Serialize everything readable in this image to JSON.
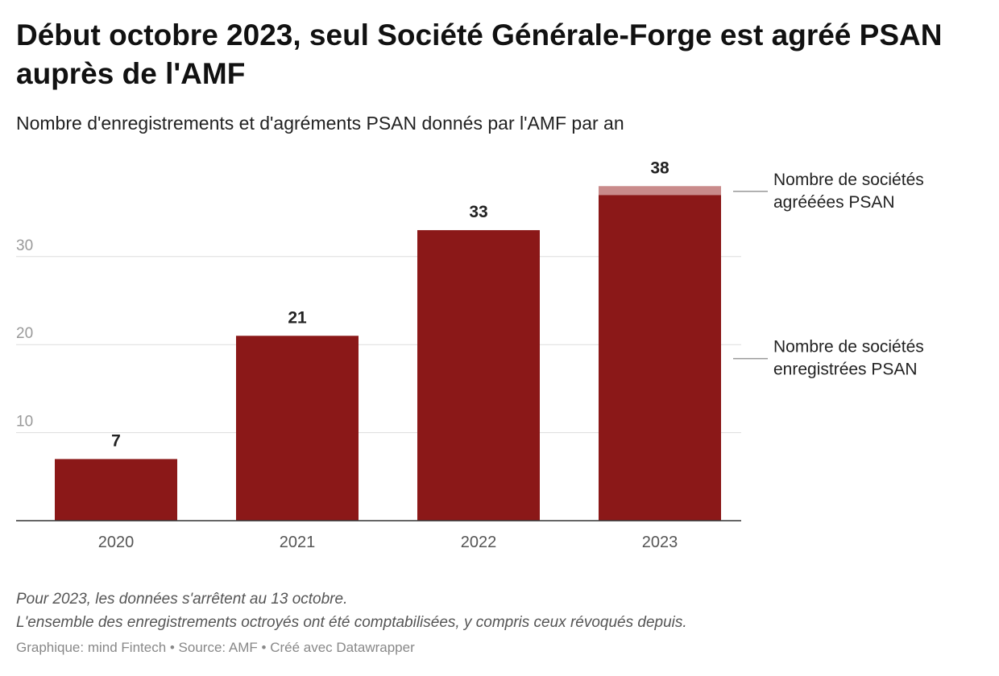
{
  "header": {
    "title": "Début octobre 2023, seul Société Générale-Forge est agréé PSAN auprès de l'AMF",
    "subtitle": "Nombre d'enregistrements et d'agréments PSAN donnés par l'AMF par an"
  },
  "chart_data": {
    "type": "bar",
    "stacked": true,
    "categories": [
      "2020",
      "2021",
      "2022",
      "2023"
    ],
    "series": [
      {
        "name": "Nombre de sociétés enregistrées PSAN",
        "values": [
          7,
          21,
          33,
          37
        ],
        "color": "#8b1818"
      },
      {
        "name": "Nombre de sociétés agréées PSAN",
        "values": [
          0,
          0,
          0,
          1
        ],
        "color": "#c98b8b"
      }
    ],
    "totals": [
      "7",
      "21",
      "33",
      "38"
    ],
    "y_ticks": [
      "10",
      "20",
      "30"
    ],
    "ylim": [
      0,
      38
    ],
    "grid": true,
    "legend": "right, direct labels",
    "labels": {
      "registered": [
        "Nombre de sociétés",
        "enregistrées PSAN"
      ],
      "approved": [
        "Nombre de sociétés",
        "agrééées PSAN"
      ]
    }
  },
  "notes": {
    "line1": "Pour 2023, les données s'arrêtent au 13 octobre.",
    "line2": "L'ensemble des enregistrements octroyés ont été comptabilisées, y compris ceux révoqués depuis."
  },
  "footer": {
    "credit": "Graphique: mind Fintech • Source: AMF • Créé avec Datawrapper"
  }
}
